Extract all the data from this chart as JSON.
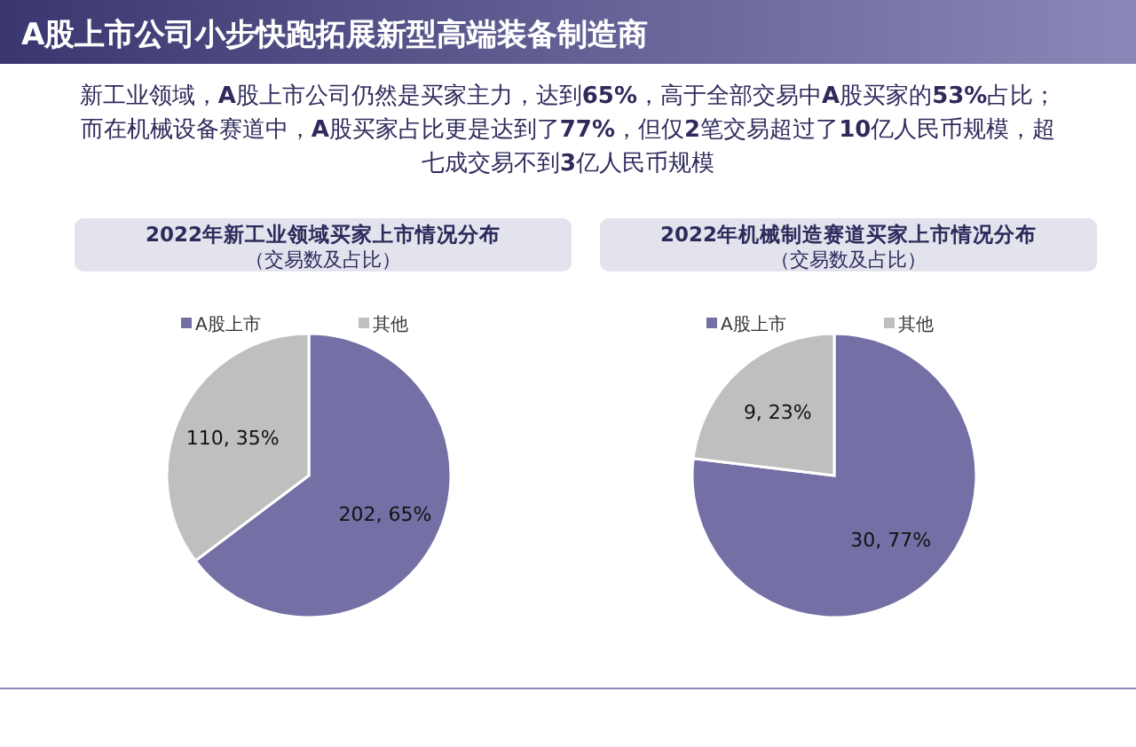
{
  "chart_data": [
    {
      "type": "other",
      "title": "A股上市公司小步快跑拓展新型高端装备制造商",
      "annotations": [
        "新工业领域，**A**股上市公司仍然是买家主力，达到**65%**，高于全部交易中**A**股买家的**53%**占比；而在机械设备赛道中，**A**股买家占比更是达到了**77%**，但仅**2**笔交易超过了**10**亿人民币规模，超七成交易不到**3**亿人民币规模"
      ]
    },
    {
      "type": "pie",
      "title": "2022年新工业领域买家上市情况分布",
      "subtitle": "（交易数及占比）",
      "categories": [
        "A股上市",
        "其他"
      ],
      "values": [
        202,
        110
      ],
      "colors": [
        "#7470a6",
        "#bfbfbf"
      ],
      "value_labels": [
        "202, 65%",
        "110, 35%"
      ],
      "legend": "top"
    },
    {
      "type": "pie",
      "title": "2022年机械制造赛道买家上市情况分布",
      "subtitle": "（交易数及占比）",
      "categories": [
        "A股上市",
        "其他"
      ],
      "values": [
        30,
        9
      ],
      "colors": [
        "#7470a6",
        "#bfbfbf"
      ],
      "value_labels": [
        "30, 77%",
        "9, 23%"
      ],
      "legend": "top"
    }
  ]
}
